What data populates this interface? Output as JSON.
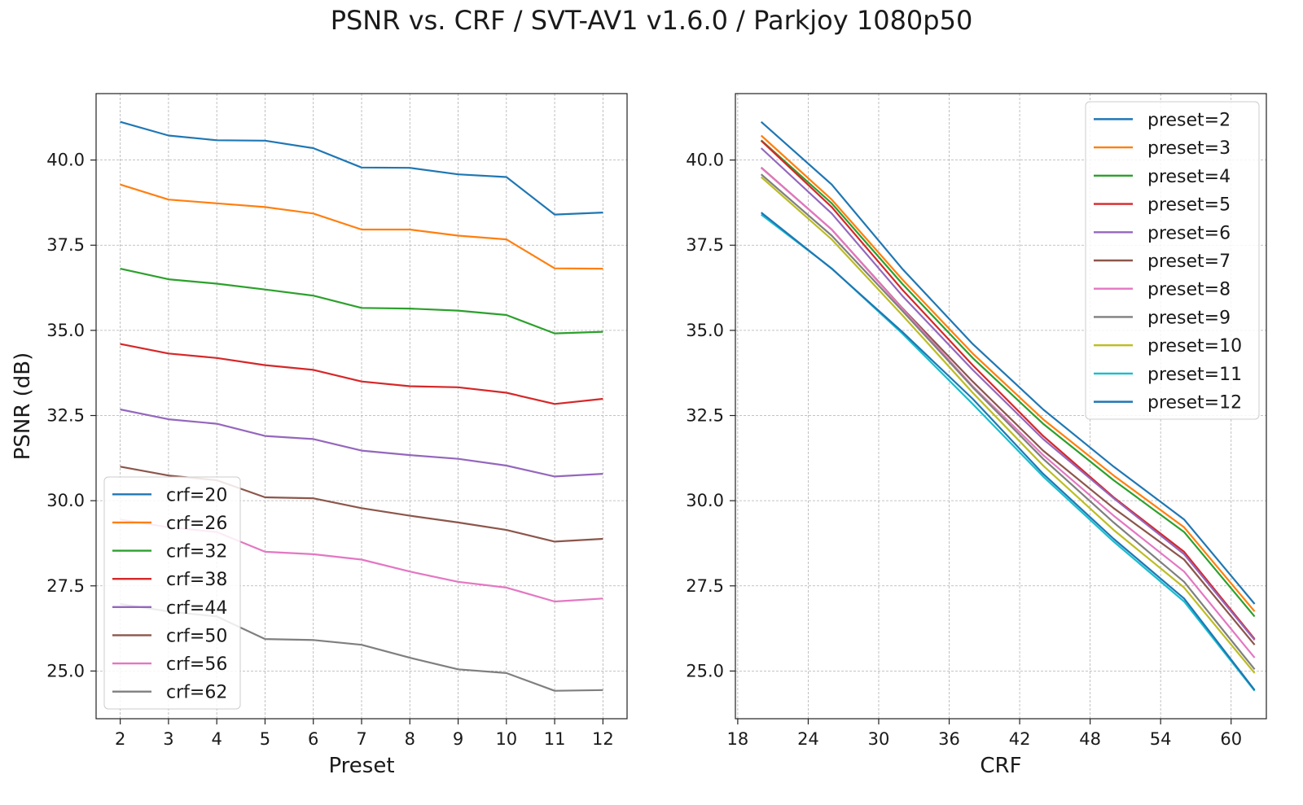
{
  "suptitle": "PSNR vs. CRF / SVT-AV1 v1.6.0 / Parkjoy 1080p50",
  "colors": {
    "c0": "#1f77b4",
    "c1": "#ff7f0e",
    "c2": "#2ca02c",
    "c3": "#d62728",
    "c4": "#9467bd",
    "c5": "#8c564b",
    "c6": "#e377c2",
    "c7": "#7f7f7f",
    "c8": "#bcbd22",
    "c9": "#17becf",
    "grid": "#b0b0b0",
    "axis": "#222222",
    "text": "#1a1a1a"
  },
  "chart_data": [
    {
      "type": "line",
      "xlabel": "Preset",
      "ylabel": "PSNR (dB)",
      "xlim": [
        1.5,
        12.5
      ],
      "ylim": [
        23.6,
        41.95
      ],
      "xticks": [
        2,
        3,
        4,
        5,
        6,
        7,
        8,
        9,
        10,
        11,
        12
      ],
      "xtick_labels": [
        "2",
        "3",
        "4",
        "5",
        "6",
        "7",
        "8",
        "9",
        "10",
        "11",
        "12"
      ],
      "yticks": [
        25.0,
        27.5,
        30.0,
        32.5,
        35.0,
        37.5,
        40.0
      ],
      "ytick_labels": [
        "25.0",
        "27.5",
        "30.0",
        "32.5",
        "35.0",
        "37.5",
        "40.0"
      ],
      "grid": true,
      "legend": "lower-left",
      "x": [
        2,
        3,
        4,
        5,
        6,
        7,
        8,
        9,
        10,
        11,
        12
      ],
      "series": [
        {
          "name": "crf=20",
          "color": "#1f77b4",
          "values": [
            41.12,
            40.72,
            40.58,
            40.57,
            40.35,
            39.78,
            39.77,
            39.58,
            39.5,
            38.4,
            38.46
          ]
        },
        {
          "name": "crf=26",
          "color": "#ff7f0e",
          "values": [
            39.28,
            38.84,
            38.73,
            38.62,
            38.43,
            37.96,
            37.96,
            37.78,
            37.67,
            36.82,
            36.81
          ]
        },
        {
          "name": "crf=32",
          "color": "#2ca02c",
          "values": [
            36.81,
            36.5,
            36.37,
            36.2,
            36.02,
            35.66,
            35.64,
            35.58,
            35.45,
            34.91,
            34.96
          ]
        },
        {
          "name": "crf=38",
          "color": "#d62728",
          "values": [
            34.6,
            34.32,
            34.19,
            33.98,
            33.84,
            33.5,
            33.36,
            33.33,
            33.17,
            32.84,
            32.99
          ]
        },
        {
          "name": "crf=44",
          "color": "#9467bd",
          "values": [
            32.68,
            32.39,
            32.26,
            31.9,
            31.81,
            31.47,
            31.34,
            31.23,
            31.03,
            30.71,
            30.79
          ]
        },
        {
          "name": "crf=50",
          "color": "#8c564b",
          "values": [
            31.0,
            30.74,
            30.6,
            30.1,
            30.07,
            29.78,
            29.56,
            29.36,
            29.14,
            28.8,
            28.88
          ]
        },
        {
          "name": "crf=56",
          "color": "#e377c2",
          "values": [
            29.45,
            29.22,
            29.08,
            28.5,
            28.43,
            28.27,
            27.92,
            27.62,
            27.45,
            27.04,
            27.13
          ]
        },
        {
          "name": "crf=62",
          "color": "#7f7f7f",
          "values": [
            26.97,
            26.75,
            26.6,
            25.94,
            25.91,
            25.77,
            25.39,
            25.05,
            24.94,
            24.42,
            24.44
          ]
        }
      ]
    },
    {
      "type": "line",
      "xlabel": "CRF",
      "ylabel": "",
      "xlim": [
        17.8,
        63.0
      ],
      "ylim": [
        23.6,
        41.95
      ],
      "xticks": [
        18,
        24,
        30,
        36,
        42,
        48,
        54,
        60
      ],
      "xtick_labels": [
        "18",
        "24",
        "30",
        "36",
        "42",
        "48",
        "54",
        "60"
      ],
      "yticks": [
        25.0,
        27.5,
        30.0,
        32.5,
        35.0,
        37.5,
        40.0
      ],
      "ytick_labels": [
        "25.0",
        "27.5",
        "30.0",
        "32.5",
        "35.0",
        "37.5",
        "40.0"
      ],
      "grid": true,
      "legend": "top-right",
      "x": [
        20,
        26,
        32,
        38,
        44,
        50,
        56,
        62
      ],
      "series": [
        {
          "name": "preset=2",
          "color": "#1f77b4",
          "values": [
            41.12,
            39.28,
            36.81,
            34.6,
            32.68,
            31.0,
            29.45,
            26.97
          ]
        },
        {
          "name": "preset=3",
          "color": "#ff7f0e",
          "values": [
            40.72,
            38.84,
            36.5,
            34.32,
            32.39,
            30.74,
            29.22,
            26.75
          ]
        },
        {
          "name": "preset=4",
          "color": "#2ca02c",
          "values": [
            40.58,
            38.73,
            36.37,
            34.19,
            32.26,
            30.6,
            29.08,
            26.6
          ]
        },
        {
          "name": "preset=5",
          "color": "#d62728",
          "values": [
            40.57,
            38.62,
            36.2,
            33.98,
            31.9,
            30.1,
            28.5,
            25.94
          ]
        },
        {
          "name": "preset=6",
          "color": "#9467bd",
          "values": [
            40.35,
            38.43,
            36.02,
            33.84,
            31.81,
            30.07,
            28.43,
            25.91
          ]
        },
        {
          "name": "preset=7",
          "color": "#8c564b",
          "values": [
            39.78,
            37.96,
            35.66,
            33.5,
            31.47,
            29.78,
            28.27,
            25.77
          ]
        },
        {
          "name": "preset=8",
          "color": "#e377c2",
          "values": [
            39.77,
            37.96,
            35.64,
            33.36,
            31.34,
            29.56,
            27.92,
            25.39
          ]
        },
        {
          "name": "preset=9",
          "color": "#7f7f7f",
          "values": [
            39.58,
            37.78,
            35.58,
            33.33,
            31.23,
            29.36,
            27.62,
            25.05
          ]
        },
        {
          "name": "preset=10",
          "color": "#bcbd22",
          "values": [
            39.5,
            37.67,
            35.45,
            33.17,
            31.03,
            29.14,
            27.45,
            24.94
          ]
        },
        {
          "name": "preset=11",
          "color": "#17becf",
          "values": [
            38.4,
            36.82,
            34.91,
            32.84,
            30.71,
            28.8,
            27.04,
            24.42
          ]
        },
        {
          "name": "preset=12",
          "color": "#1f77b4",
          "values": [
            38.46,
            36.81,
            34.96,
            32.99,
            30.79,
            28.88,
            27.13,
            24.44
          ]
        }
      ]
    }
  ]
}
